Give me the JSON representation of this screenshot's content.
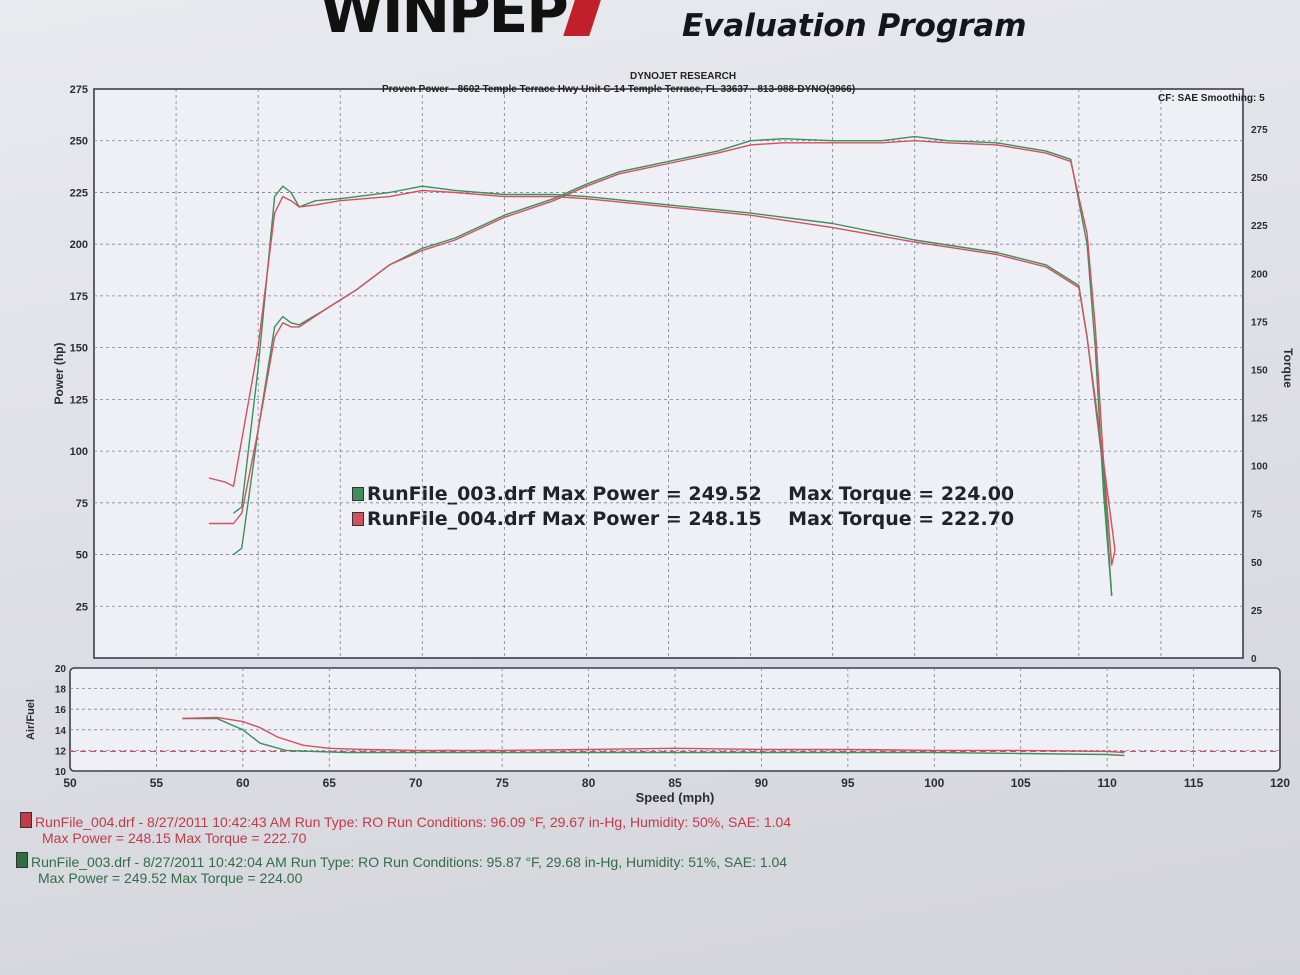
{
  "header": {
    "logo_text": "WINPEP",
    "program_title": "Evaluation Program",
    "lab_name": "DYNOJET RESEARCH",
    "shop_line": "Proven Power - 8602 Temple Terrace Hwy Unit C-14 Temple Terrace, FL 33637 - 813-988-DYNO(3966)",
    "settings": "CF: SAE  Smoothing: 5"
  },
  "colors": {
    "run_003": "#3f8f5a",
    "run_004": "#d0525e",
    "grid": "#7a7f96",
    "paper": "#e4e5ea"
  },
  "legend": {
    "run_003": {
      "file": "RunFile_003.drf",
      "max_power_label": "Max Power =",
      "max_power": "249.52",
      "max_torque_label": "Max Torque =",
      "max_torque": "224.00"
    },
    "run_004": {
      "file": "RunFile_004.drf",
      "max_power_label": "Max Power =",
      "max_power": "248.15",
      "max_torque_label": "Max Torque =",
      "max_torque": "222.70"
    }
  },
  "footer": {
    "run_004_line1": "RunFile_004.drf - 8/27/2011 10:42:43 AM  Run Type: RO  Run Conditions: 96.09 °F, 29.67 in-Hg,  Humidity: 50%, SAE: 1.04",
    "run_004_line2": "Max Power = 248.15  Max Torque = 222.70",
    "run_003_line1": "RunFile_003.drf - 8/27/2011 10:42:04 AM  Run Type: RO  Run Conditions: 95.87 °F, 29.68 in-Hg,  Humidity: 51%, SAE: 1.04",
    "run_003_line2": "Max Power = 249.52  Max Torque = 224.00"
  },
  "chart_data": [
    {
      "type": "line",
      "title": "",
      "xlabel": "Speed (mph)",
      "ylabel": "Power (hp)",
      "y2label": "Torque",
      "xlim": [
        50,
        120
      ],
      "ylim": [
        0,
        275
      ],
      "y2lim": [
        0,
        275
      ],
      "x_ticks": [
        "50",
        "55",
        "60",
        "65",
        "70",
        "75",
        "80",
        "85",
        "90",
        "95",
        "100",
        "105",
        "110",
        "115",
        "120"
      ],
      "y_ticks": [
        "25",
        "50",
        "75",
        "100",
        "125",
        "150",
        "175",
        "200",
        "225",
        "250",
        "275"
      ],
      "y2_ticks": [
        "0",
        "25",
        "50",
        "75",
        "100",
        "125",
        "150",
        "175",
        "200",
        "225",
        "250",
        "275"
      ],
      "grid": true,
      "series": [
        {
          "name": "RunFile_003.drf",
          "quantity": "power",
          "color_key": "run_003",
          "x": [
            58.5,
            59.0,
            60.0,
            61.0,
            61.5,
            62.0,
            62.5,
            64,
            66,
            68,
            70,
            72,
            75,
            78,
            80,
            82,
            85,
            88,
            90,
            92,
            95,
            98,
            100,
            102,
            105,
            108,
            109.5,
            110.5,
            111,
            111.5,
            112.0
          ],
          "y": [
            50,
            53,
            110,
            160,
            165,
            162,
            161,
            168,
            178,
            190,
            198,
            203,
            214,
            222,
            229,
            235,
            240,
            245,
            250,
            251,
            250,
            250,
            252,
            250,
            249,
            245,
            241,
            200,
            150,
            80,
            30
          ]
        },
        {
          "name": "RunFile_004.drf",
          "quantity": "power",
          "color_key": "run_004",
          "x": [
            57.0,
            58.5,
            59.0,
            60.0,
            61.0,
            61.5,
            62.0,
            62.5,
            64,
            66,
            68,
            70,
            72,
            75,
            78,
            80,
            82,
            85,
            88,
            90,
            92,
            95,
            98,
            100,
            102,
            105,
            108,
            109.5,
            110.5,
            111,
            111.5,
            112.0,
            112.2
          ],
          "y": [
            65,
            65,
            70,
            110,
            155,
            162,
            160,
            160,
            168,
            178,
            190,
            197,
            202,
            213,
            221,
            228,
            234,
            239,
            244,
            248,
            249,
            249,
            249,
            250,
            249,
            248,
            244,
            240,
            205,
            160,
            95,
            45,
            52
          ]
        },
        {
          "name": "RunFile_003.drf",
          "quantity": "torque",
          "color_key": "run_003",
          "x": [
            58.5,
            59.0,
            60.0,
            61.0,
            61.5,
            62.0,
            62.5,
            63.5,
            65,
            68,
            70,
            72,
            75,
            78,
            80,
            85,
            90,
            95,
            100,
            105,
            108,
            110,
            110.5,
            111.5,
            112.0
          ],
          "y": [
            70,
            73,
            140,
            223,
            228,
            225,
            218,
            221,
            222,
            225,
            228,
            226,
            224,
            224,
            223,
            219,
            215,
            210,
            202,
            196,
            190,
            180,
            155,
            90,
            30
          ]
        },
        {
          "name": "RunFile_004.drf",
          "quantity": "torque",
          "color_key": "run_004",
          "x": [
            57.0,
            58.0,
            58.5,
            60.0,
            61.0,
            61.5,
            62.0,
            62.5,
            63.5,
            65,
            68,
            70,
            72,
            75,
            78,
            80,
            85,
            90,
            95,
            100,
            105,
            108,
            110,
            110.5,
            111.5,
            112.2
          ],
          "y": [
            87,
            85,
            83,
            150,
            215,
            223,
            221,
            218,
            219,
            221,
            223,
            226,
            225,
            223,
            223,
            222,
            218,
            214,
            208,
            201,
            195,
            189,
            179,
            155,
            95,
            52
          ]
        }
      ]
    },
    {
      "type": "line",
      "title": "",
      "xlabel": "Speed (mph)",
      "ylabel": "Air/Fuel",
      "xlim": [
        50,
        120
      ],
      "ylim": [
        10,
        20
      ],
      "y_ticks": [
        "10",
        "12",
        "14",
        "16",
        "18",
        "20"
      ],
      "reference_line": 11.9,
      "series": [
        {
          "name": "RunFile_003.drf",
          "color_key": "run_003",
          "x": [
            56.5,
            58.5,
            60.0,
            61.0,
            62.5,
            64,
            66,
            70,
            75,
            80,
            85,
            90,
            95,
            100,
            105,
            110,
            111
          ],
          "y": [
            15.1,
            15.1,
            14.0,
            12.7,
            12.0,
            11.9,
            11.8,
            11.8,
            11.8,
            11.8,
            11.8,
            11.8,
            11.8,
            11.8,
            11.7,
            11.6,
            11.5
          ]
        },
        {
          "name": "RunFile_004.drf",
          "color_key": "run_004",
          "x": [
            56.5,
            58.5,
            60.0,
            61.0,
            62.0,
            63.5,
            65,
            67,
            70,
            75,
            80,
            85,
            90,
            95,
            100,
            105,
            110,
            111
          ],
          "y": [
            15.1,
            15.2,
            14.8,
            14.2,
            13.3,
            12.5,
            12.2,
            12.1,
            12.0,
            12.0,
            12.1,
            12.2,
            12.1,
            12.1,
            12.0,
            12.0,
            11.9,
            11.8
          ]
        }
      ]
    }
  ]
}
